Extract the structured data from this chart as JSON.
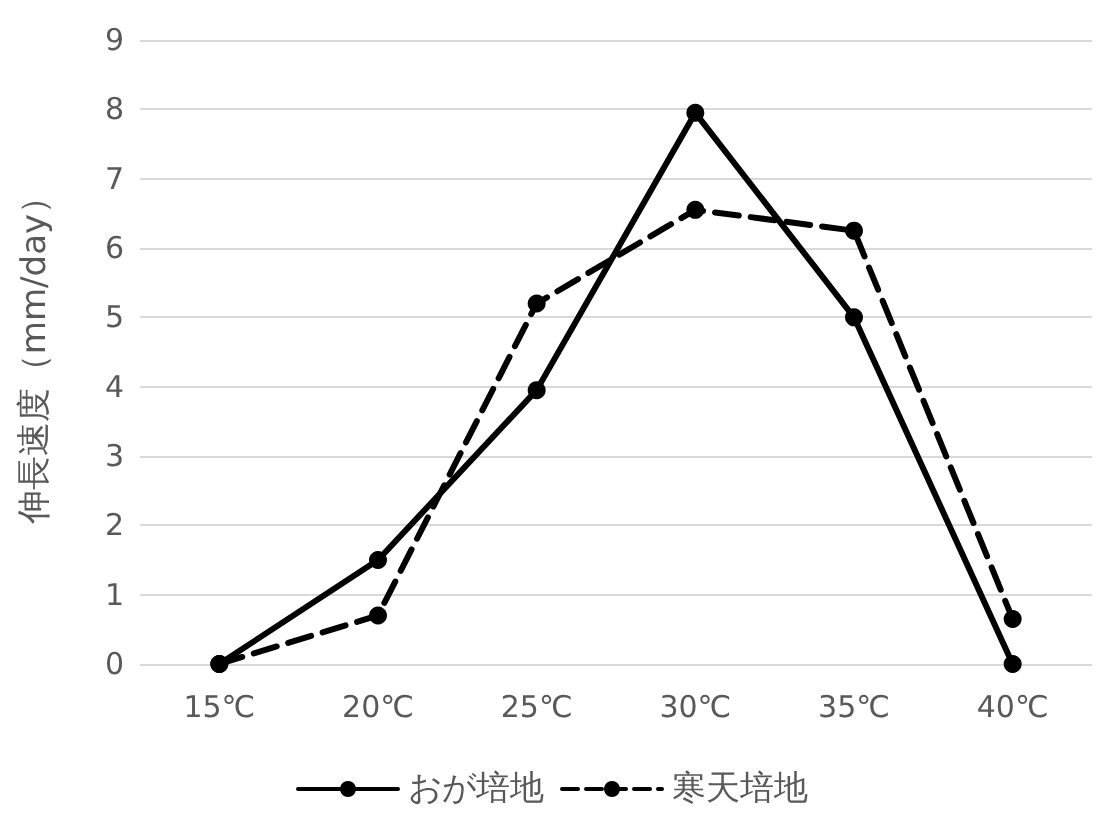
{
  "chart_data": {
    "type": "line",
    "ylabel": "伸長速度（mm/day）",
    "categories": [
      "15℃",
      "20℃",
      "25℃",
      "30℃",
      "35℃",
      "40℃"
    ],
    "series": [
      {
        "name": "おが培地",
        "color": "#000000",
        "line_style": "solid",
        "values": [
          0,
          1.5,
          3.95,
          7.95,
          5.0,
          0
        ]
      },
      {
        "name": "寒天培地",
        "color": "#000000",
        "line_style": "dashed",
        "values": [
          0,
          0.7,
          5.2,
          6.55,
          6.25,
          0.65
        ]
      }
    ],
    "ylim": [
      0,
      9
    ],
    "yticks": [
      0,
      1,
      2,
      3,
      4,
      5,
      6,
      7,
      8,
      9
    ],
    "grid": "y",
    "legend": "bottom",
    "marker": "circle"
  }
}
